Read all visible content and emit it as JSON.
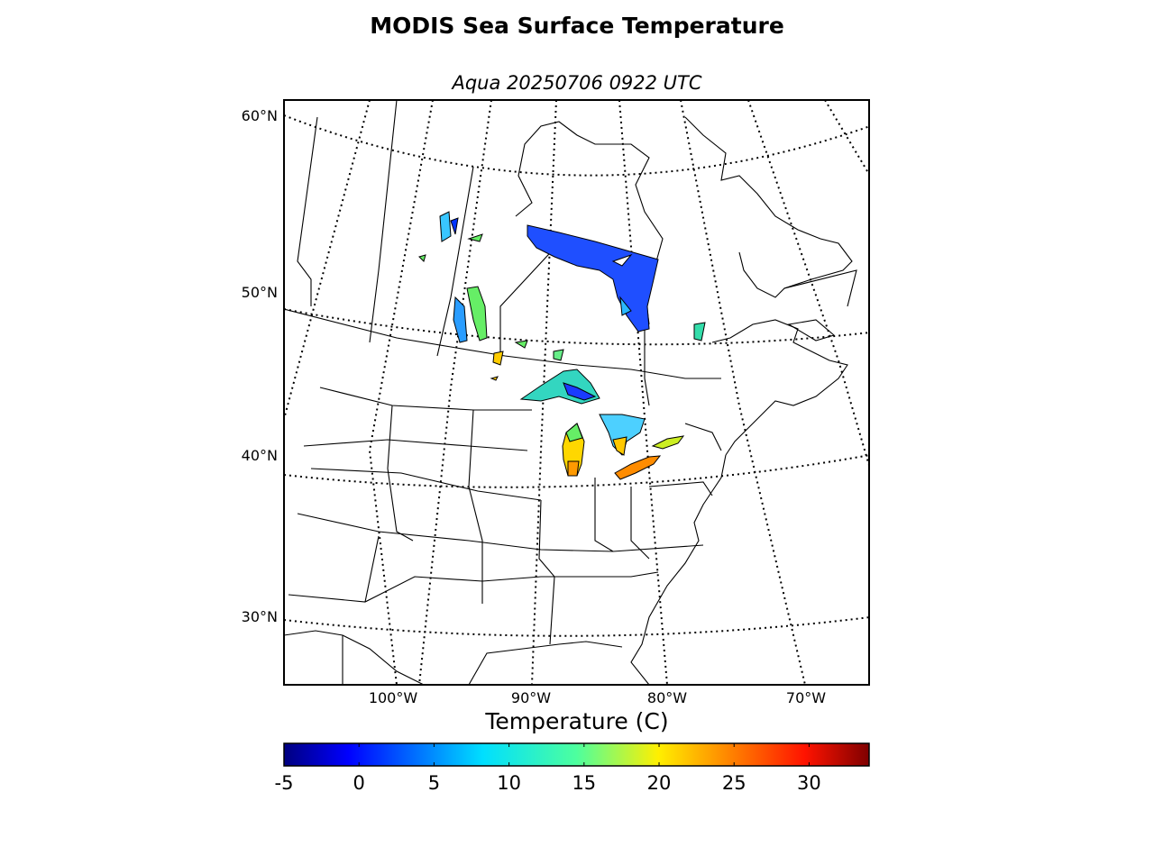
{
  "title": "MODIS Sea Surface Temperature",
  "subtitle": "Aqua 20250706 0922 UTC",
  "map": {
    "lat_labels": [
      "60°N",
      "50°N",
      "40°N",
      "30°N"
    ],
    "lon_labels": [
      "100°W",
      "90°W",
      "80°W",
      "70°W"
    ],
    "graticule_style": "dotted",
    "region": "Great Lakes / Eastern North America"
  },
  "colorbar": {
    "label": "Temperature (C)",
    "min": -5,
    "max": 34,
    "ticks": [
      "-5",
      "0",
      "5",
      "10",
      "15",
      "20",
      "25",
      "30"
    ],
    "colormap": "jet"
  },
  "colors": {
    "water_cold": "#0033ff",
    "water_mid": "#33ddaa",
    "water_warm": "#ff8800",
    "coastline": "#000000"
  }
}
